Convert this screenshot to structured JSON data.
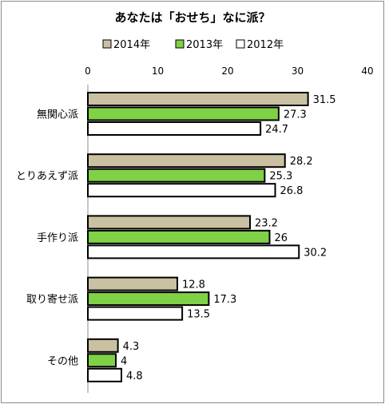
{
  "chart_data": {
    "type": "bar",
    "orientation": "horizontal",
    "title": "あなたは「おせち」なに派？",
    "categories": [
      "無関心派",
      "とりあえず派",
      "手作り派",
      "取り寄せ派",
      "その他"
    ],
    "series": [
      {
        "name": "2014年",
        "values": [
          31.5,
          28.2,
          23.2,
          12.8,
          4.3
        ],
        "color": "#c9c1a2"
      },
      {
        "name": "2013年",
        "values": [
          27.3,
          25.3,
          26,
          17.3,
          4
        ],
        "color": "#7fd146"
      },
      {
        "name": "2012年",
        "values": [
          24.7,
          26.8,
          30.2,
          13.5,
          4.8
        ],
        "color": "#ffffff"
      }
    ],
    "data_labels": [
      [
        "31.5",
        "28.2",
        "23.2",
        "12.8",
        "4.3"
      ],
      [
        "27.3",
        "25.3",
        "26",
        "17.3",
        "4"
      ],
      [
        "24.7",
        "26.8",
        "30.2",
        "13.5",
        "4.8"
      ]
    ],
    "xlim": [
      0,
      40
    ],
    "xticks": [
      0,
      10,
      20,
      30,
      40
    ],
    "xtick_labels": [
      "0",
      "10",
      "20",
      "30",
      "40"
    ],
    "legend_position": "top",
    "gridlines": false
  }
}
